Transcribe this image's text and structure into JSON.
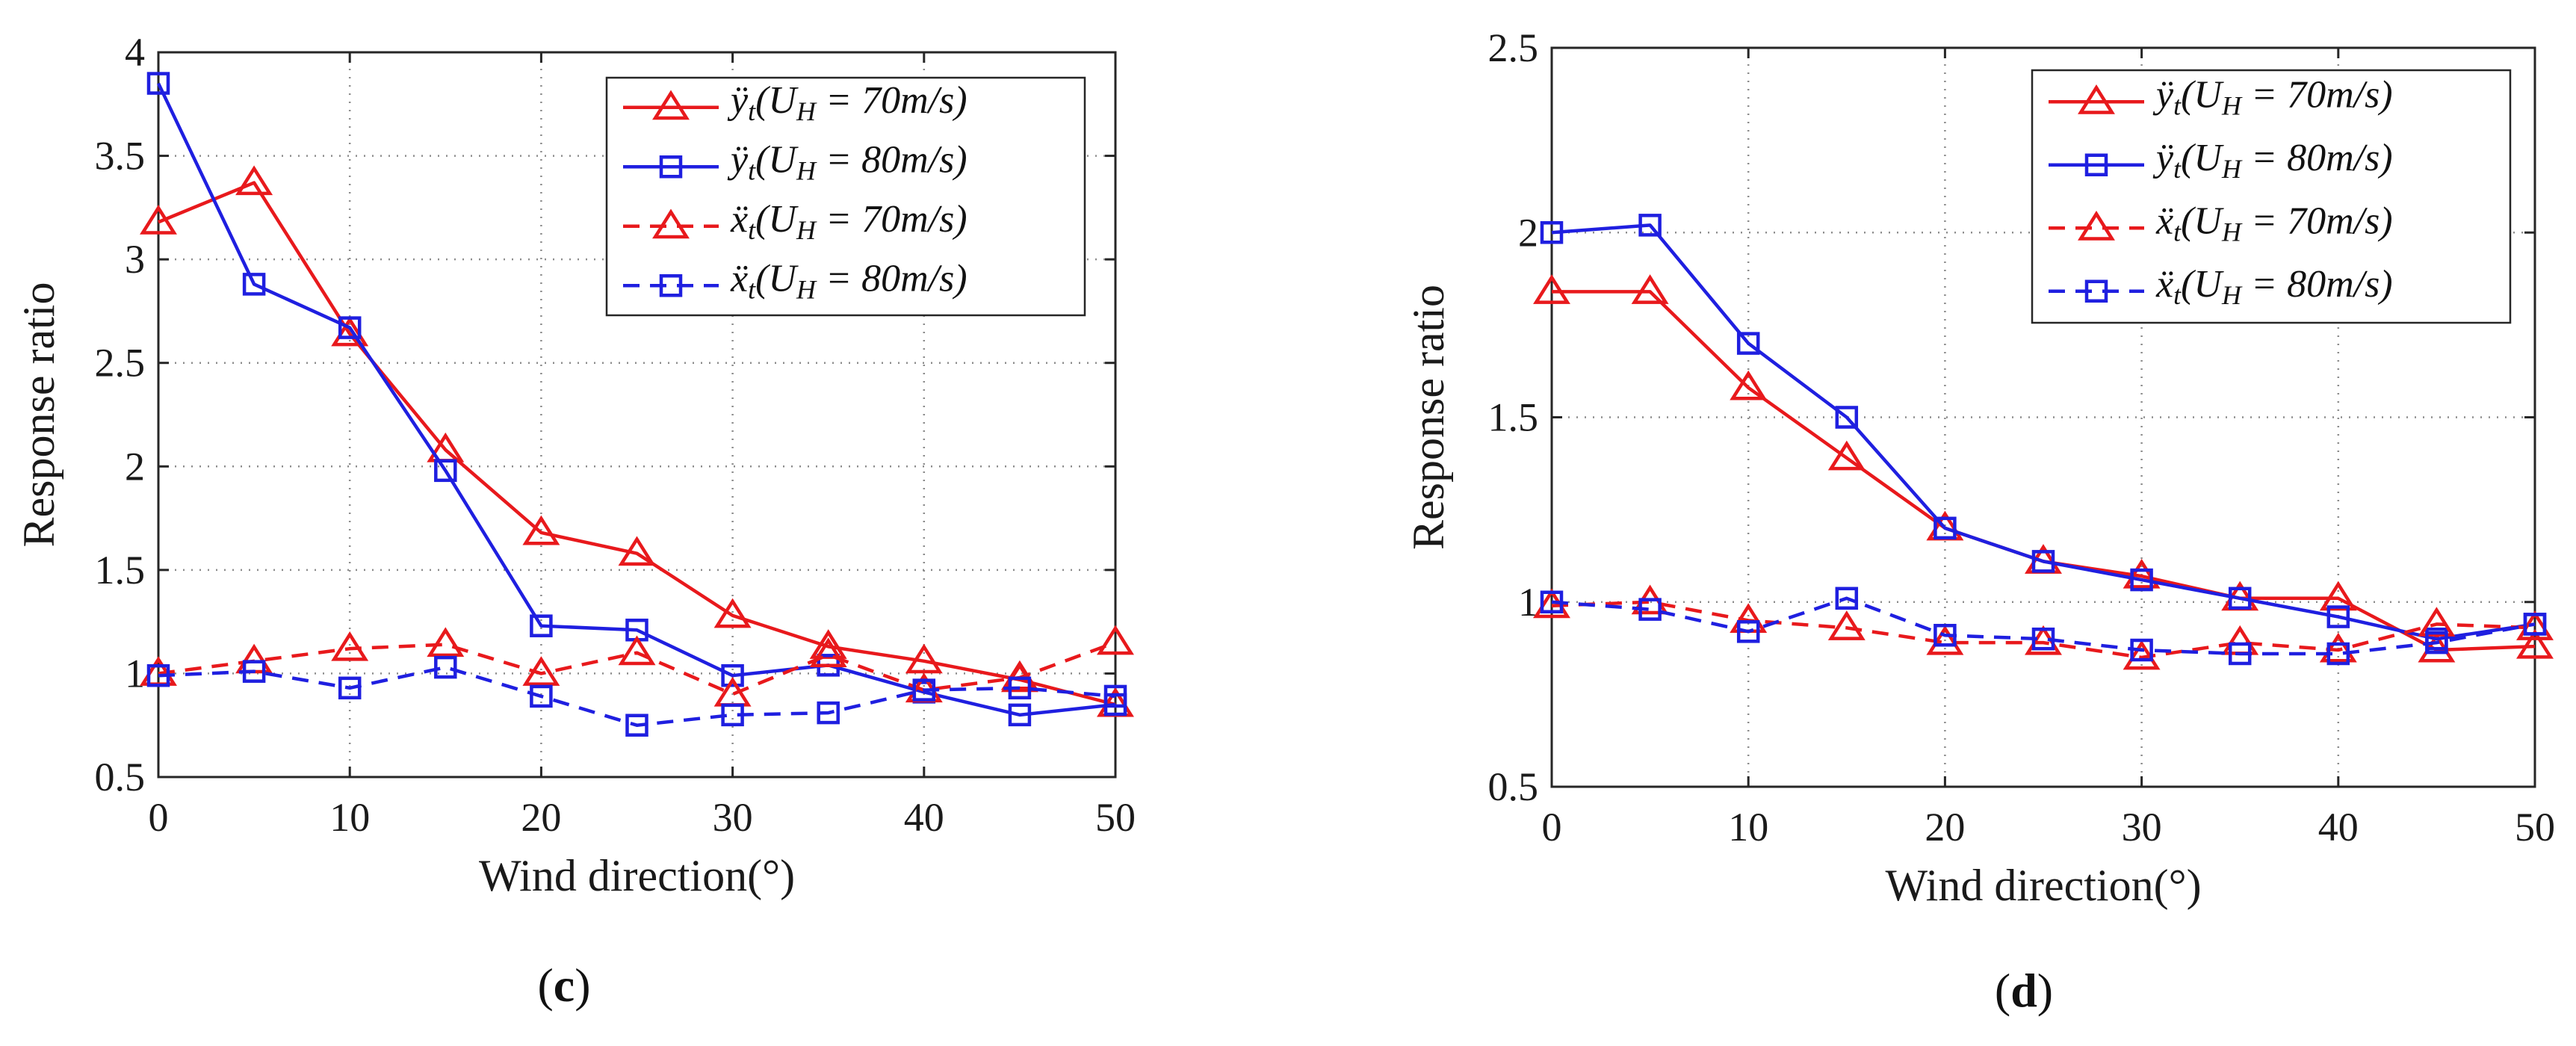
{
  "colors": {
    "red": "#e8191c",
    "blue": "#1f1fe0",
    "axis": "#262626",
    "grid": "#8c8c8c"
  },
  "chart_data": [
    {
      "type": "line",
      "panel": "c",
      "caption_letter": "c",
      "xlabel": "Wind direction(°)",
      "ylabel": "Response ratio",
      "xlim": [
        0,
        50
      ],
      "ylim": [
        0.5,
        4
      ],
      "xticks": [
        0,
        10,
        20,
        30,
        40,
        50
      ],
      "yticks": [
        0.5,
        1,
        1.5,
        2,
        2.5,
        3,
        3.5,
        4
      ],
      "ytick_labels": [
        "0.5",
        "1",
        "1.5",
        "2",
        "2.5",
        "3",
        "3.5",
        "4"
      ],
      "grid": true,
      "legend_position": "top-right",
      "x": [
        0,
        5,
        10,
        15,
        20,
        25,
        30,
        35,
        40,
        45,
        50
      ],
      "series": [
        {
          "name": "ÿt(UH = 70m/s)",
          "legend_main": "ÿ",
          "legend_sub": "t",
          "legend_rest": "(U",
          "legend_sub2": "H",
          "legend_tail": " = 70m/s)",
          "color": "red",
          "marker": "triangle",
          "dashed": false,
          "values": [
            3.18,
            3.37,
            2.64,
            2.08,
            1.68,
            1.58,
            1.28,
            1.13,
            1.06,
            0.97,
            0.85
          ]
        },
        {
          "name": "ÿt(UH = 80m/s)",
          "legend_main": "ÿ",
          "legend_sub": "t",
          "legend_rest": "(U",
          "legend_sub2": "H",
          "legend_tail": " = 80m/s)",
          "color": "blue",
          "marker": "square",
          "dashed": false,
          "values": [
            3.85,
            2.88,
            2.67,
            1.98,
            1.23,
            1.21,
            0.99,
            1.04,
            0.91,
            0.8,
            0.85
          ]
        },
        {
          "name": "ẍt(UH = 70m/s)",
          "legend_main": "ẍ",
          "legend_sub": "t",
          "legend_rest": "(U",
          "legend_sub2": "H",
          "legend_tail": " = 70m/s)",
          "color": "red",
          "marker": "triangle",
          "dashed": true,
          "values": [
            1.0,
            1.06,
            1.12,
            1.14,
            1.0,
            1.1,
            0.9,
            1.09,
            0.92,
            0.98,
            1.15
          ]
        },
        {
          "name": "ẍt(UH = 80m/s)",
          "legend_main": "ẍ",
          "legend_sub": "t",
          "legend_rest": "(U",
          "legend_sub2": "H",
          "legend_tail": " = 80m/s)",
          "color": "blue",
          "marker": "square",
          "dashed": true,
          "values": [
            0.99,
            1.01,
            0.93,
            1.03,
            0.89,
            0.75,
            0.8,
            0.81,
            0.92,
            0.93,
            0.89
          ]
        }
      ]
    },
    {
      "type": "line",
      "panel": "d",
      "caption_letter": "d",
      "xlabel": "Wind direction(°)",
      "ylabel": "Response ratio",
      "xlim": [
        0,
        50
      ],
      "ylim": [
        0.5,
        2.5
      ],
      "xticks": [
        0,
        10,
        20,
        30,
        40,
        50
      ],
      "yticks": [
        0.5,
        1,
        1.5,
        2,
        2.5
      ],
      "ytick_labels": [
        "0.5",
        "1",
        "1.5",
        "2",
        "2.5"
      ],
      "grid": true,
      "legend_position": "top-right",
      "x": [
        0,
        5,
        10,
        15,
        20,
        25,
        30,
        35,
        40,
        45,
        50
      ],
      "series": [
        {
          "name": "ÿt(UH = 70m/s)",
          "legend_main": "ÿ",
          "legend_sub": "t",
          "legend_rest": "(U",
          "legend_sub2": "H",
          "legend_tail": " = 70m/s)",
          "color": "red",
          "marker": "triangle",
          "dashed": false,
          "values": [
            1.84,
            1.84,
            1.58,
            1.39,
            1.2,
            1.11,
            1.07,
            1.01,
            1.01,
            0.87,
            0.88
          ]
        },
        {
          "name": "ÿt(UH = 80m/s)",
          "legend_main": "ÿ",
          "legend_sub": "t",
          "legend_rest": "(U",
          "legend_sub2": "H",
          "legend_tail": " = 80m/s)",
          "color": "blue",
          "marker": "square",
          "dashed": false,
          "values": [
            2.0,
            2.02,
            1.7,
            1.5,
            1.2,
            1.11,
            1.06,
            1.01,
            0.96,
            0.9,
            0.94
          ]
        },
        {
          "name": "ẍt(UH = 70m/s)",
          "legend_main": "ẍ",
          "legend_sub": "t",
          "legend_rest": "(U",
          "legend_sub2": "H",
          "legend_tail": " = 70m/s)",
          "color": "red",
          "marker": "triangle",
          "dashed": true,
          "values": [
            0.99,
            1.0,
            0.95,
            0.93,
            0.89,
            0.89,
            0.85,
            0.89,
            0.87,
            0.94,
            0.93
          ]
        },
        {
          "name": "ẍt(UH = 80m/s)",
          "legend_main": "ẍ",
          "legend_sub": "t",
          "legend_rest": "(U",
          "legend_sub2": "H",
          "legend_tail": " = 80m/s)",
          "color": "blue",
          "marker": "square",
          "dashed": true,
          "values": [
            1.0,
            0.98,
            0.92,
            1.01,
            0.91,
            0.9,
            0.87,
            0.86,
            0.86,
            0.89,
            0.94
          ]
        }
      ]
    }
  ]
}
